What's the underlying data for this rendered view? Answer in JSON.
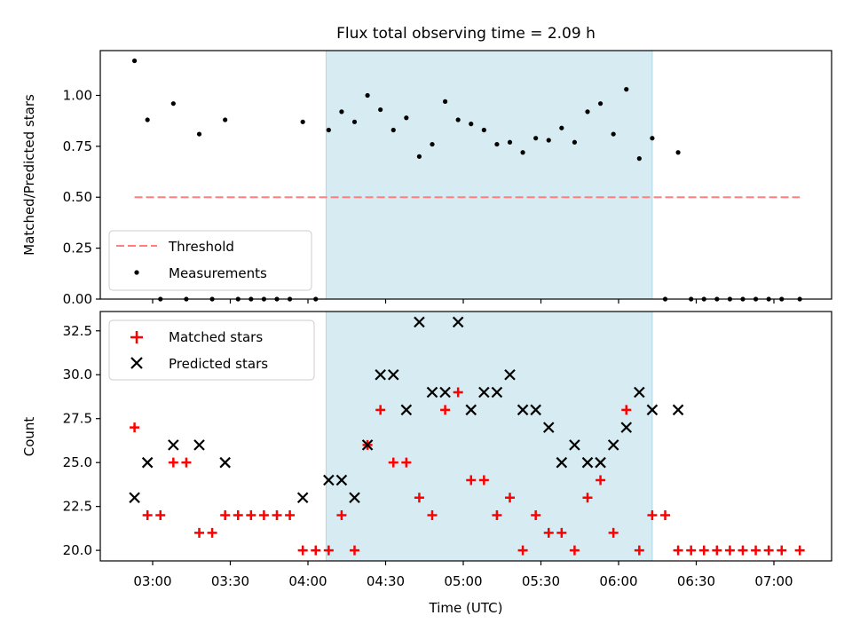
{
  "chart_data": {
    "title": "Flux total observing time = 2.09 h",
    "xlabel": "Time (UTC)",
    "x_ticks": [
      "03:00",
      "03:30",
      "04:00",
      "04:30",
      "05:00",
      "05:30",
      "06:00",
      "06:30",
      "07:00"
    ],
    "shaded_span": {
      "start": "04:07",
      "end": "06:13",
      "color": "#add8e6"
    },
    "top": {
      "type": "scatter",
      "ylabel": "Matched/Predicted stars",
      "ylim": [
        0,
        1.22
      ],
      "yticks": [
        "0.00",
        "0.25",
        "0.50",
        "0.75",
        "1.00"
      ],
      "legend": "lower-left",
      "threshold": {
        "name": "Threshold",
        "value": 0.5,
        "x_start": "02:53",
        "x_end": "07:10",
        "color": "#ff7f7f"
      },
      "series": [
        {
          "name": "Measurements",
          "color": "#000000",
          "points": [
            [
              "02:53",
              1.17
            ],
            [
              "02:58",
              0.88
            ],
            [
              "03:03",
              0.0
            ],
            [
              "03:08",
              0.96
            ],
            [
              "03:13",
              0.0
            ],
            [
              "03:18",
              0.81
            ],
            [
              "03:23",
              0.0
            ],
            [
              "03:28",
              0.88
            ],
            [
              "03:33",
              0.0
            ],
            [
              "03:38",
              0.0
            ],
            [
              "03:43",
              0.0
            ],
            [
              "03:48",
              0.0
            ],
            [
              "03:53",
              0.0
            ],
            [
              "03:58",
              0.87
            ],
            [
              "04:03",
              0.0
            ],
            [
              "04:08",
              0.83
            ],
            [
              "04:13",
              0.92
            ],
            [
              "04:18",
              0.87
            ],
            [
              "04:23",
              1.0
            ],
            [
              "04:28",
              0.93
            ],
            [
              "04:33",
              0.83
            ],
            [
              "04:38",
              0.89
            ],
            [
              "04:43",
              0.7
            ],
            [
              "04:48",
              0.76
            ],
            [
              "04:53",
              0.97
            ],
            [
              "04:58",
              0.88
            ],
            [
              "05:03",
              0.86
            ],
            [
              "05:08",
              0.83
            ],
            [
              "05:13",
              0.76
            ],
            [
              "05:18",
              0.77
            ],
            [
              "05:23",
              0.72
            ],
            [
              "05:28",
              0.79
            ],
            [
              "05:33",
              0.78
            ],
            [
              "05:38",
              0.84
            ],
            [
              "05:43",
              0.77
            ],
            [
              "05:48",
              0.92
            ],
            [
              "05:53",
              0.96
            ],
            [
              "05:58",
              0.81
            ],
            [
              "06:03",
              1.03
            ],
            [
              "06:08",
              0.69
            ],
            [
              "06:13",
              0.79
            ],
            [
              "06:18",
              0.0
            ],
            [
              "06:23",
              0.72
            ],
            [
              "06:28",
              0.0
            ],
            [
              "06:33",
              0.0
            ],
            [
              "06:38",
              0.0
            ],
            [
              "06:43",
              0.0
            ],
            [
              "06:48",
              0.0
            ],
            [
              "06:53",
              0.0
            ],
            [
              "06:58",
              0.0
            ],
            [
              "07:03",
              0.0
            ],
            [
              "07:10",
              0.0
            ]
          ]
        }
      ]
    },
    "bottom": {
      "type": "scatter",
      "ylabel": "Count",
      "ylim": [
        19.4,
        33.6
      ],
      "yticks": [
        "20.0",
        "22.5",
        "25.0",
        "27.5",
        "30.0",
        "32.5"
      ],
      "legend": "upper-left",
      "series": [
        {
          "name": "Matched stars",
          "marker": "plus",
          "color": "#ff0000",
          "points": [
            [
              "02:53",
              27
            ],
            [
              "02:58",
              22
            ],
            [
              "03:03",
              22
            ],
            [
              "03:08",
              25
            ],
            [
              "03:13",
              25
            ],
            [
              "03:18",
              21
            ],
            [
              "03:23",
              21
            ],
            [
              "03:28",
              22
            ],
            [
              "03:33",
              22
            ],
            [
              "03:38",
              22
            ],
            [
              "03:43",
              22
            ],
            [
              "03:48",
              22
            ],
            [
              "03:53",
              22
            ],
            [
              "03:58",
              20
            ],
            [
              "04:03",
              20
            ],
            [
              "04:08",
              20
            ],
            [
              "04:13",
              22
            ],
            [
              "04:18",
              20
            ],
            [
              "04:23",
              26
            ],
            [
              "04:28",
              28
            ],
            [
              "04:33",
              25
            ],
            [
              "04:38",
              25
            ],
            [
              "04:43",
              23
            ],
            [
              "04:48",
              22
            ],
            [
              "04:53",
              28
            ],
            [
              "04:58",
              29
            ],
            [
              "05:03",
              24
            ],
            [
              "05:08",
              24
            ],
            [
              "05:13",
              22
            ],
            [
              "05:18",
              23
            ],
            [
              "05:23",
              20
            ],
            [
              "05:28",
              22
            ],
            [
              "05:33",
              21
            ],
            [
              "05:38",
              21
            ],
            [
              "05:43",
              20
            ],
            [
              "05:48",
              23
            ],
            [
              "05:53",
              24
            ],
            [
              "05:58",
              21
            ],
            [
              "06:03",
              28
            ],
            [
              "06:08",
              20
            ],
            [
              "06:13",
              22
            ],
            [
              "06:18",
              22
            ],
            [
              "06:23",
              20
            ],
            [
              "06:28",
              20
            ],
            [
              "06:33",
              20
            ],
            [
              "06:38",
              20
            ],
            [
              "06:43",
              20
            ],
            [
              "06:48",
              20
            ],
            [
              "06:53",
              20
            ],
            [
              "06:58",
              20
            ],
            [
              "07:03",
              20
            ],
            [
              "07:10",
              20
            ]
          ]
        },
        {
          "name": "Predicted stars",
          "marker": "cross",
          "color": "#000000",
          "points": [
            [
              "02:53",
              23
            ],
            [
              "02:58",
              25
            ],
            [
              "03:08",
              26
            ],
            [
              "03:18",
              26
            ],
            [
              "03:28",
              25
            ],
            [
              "03:58",
              23
            ],
            [
              "04:08",
              24
            ],
            [
              "04:13",
              24
            ],
            [
              "04:18",
              23
            ],
            [
              "04:23",
              26
            ],
            [
              "04:28",
              30
            ],
            [
              "04:33",
              30
            ],
            [
              "04:38",
              28
            ],
            [
              "04:43",
              33
            ],
            [
              "04:48",
              29
            ],
            [
              "04:53",
              29
            ],
            [
              "04:58",
              33
            ],
            [
              "05:03",
              28
            ],
            [
              "05:08",
              29
            ],
            [
              "05:13",
              29
            ],
            [
              "05:18",
              30
            ],
            [
              "05:23",
              28
            ],
            [
              "05:28",
              28
            ],
            [
              "05:33",
              27
            ],
            [
              "05:38",
              25
            ],
            [
              "05:43",
              26
            ],
            [
              "05:48",
              25
            ],
            [
              "05:53",
              25
            ],
            [
              "05:58",
              26
            ],
            [
              "06:03",
              27
            ],
            [
              "06:08",
              29
            ],
            [
              "06:13",
              28
            ],
            [
              "06:23",
              28
            ]
          ]
        }
      ]
    }
  }
}
